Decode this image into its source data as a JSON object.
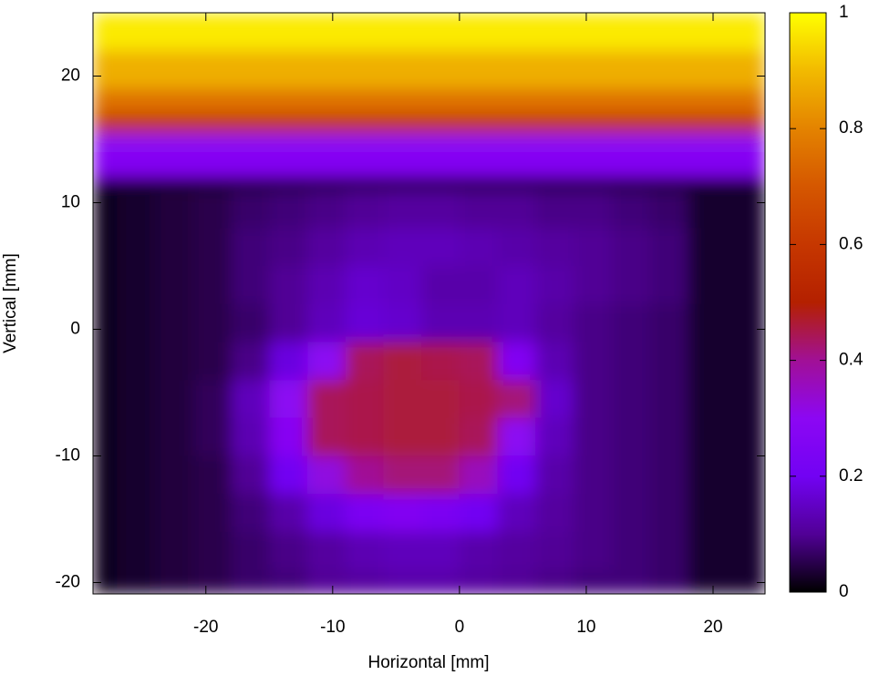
{
  "chart_data": {
    "type": "heatmap",
    "xlabel": "Horizontal [mm]",
    "ylabel": "Vertical [mm]",
    "xlim": [
      -28.9,
      24.1
    ],
    "ylim": [
      -20.9,
      25.0
    ],
    "zlim": [
      0,
      1
    ],
    "xticks": [
      -20,
      -10,
      0,
      10,
      20
    ],
    "yticks": [
      -20,
      -10,
      0,
      10,
      20
    ],
    "zticks": [
      0,
      0.2,
      0.4,
      0.6,
      0.8,
      1
    ],
    "colormap": [
      "#000000",
      "#510096",
      "#7202f3",
      "#8c07f3",
      "#a11096",
      "#b42000",
      "#c63700",
      "#d55700",
      "#e48300",
      "#f2ba00",
      "#ffff00"
    ],
    "xbins": [
      -28.9,
      -27,
      -24,
      -21,
      -18,
      -15,
      -12,
      -9,
      -6,
      -3,
      0,
      3,
      6,
      9,
      12,
      15,
      18,
      21,
      24.1
    ],
    "ybins": [
      25,
      22,
      19,
      17,
      15.5,
      14,
      12,
      11,
      8,
      5,
      2,
      -1,
      -4,
      -7,
      -10,
      -13,
      -16,
      -19,
      -20.9
    ],
    "values": [
      [
        0.97,
        0.97,
        0.97,
        0.97,
        0.97,
        0.97,
        0.97,
        0.97,
        0.97,
        0.97,
        0.97,
        0.97,
        0.97,
        0.97,
        0.97,
        0.97,
        0.97,
        0.97
      ],
      [
        0.88,
        0.88,
        0.88,
        0.88,
        0.88,
        0.88,
        0.88,
        0.88,
        0.88,
        0.88,
        0.88,
        0.88,
        0.88,
        0.88,
        0.88,
        0.88,
        0.88,
        0.88
      ],
      [
        0.76,
        0.76,
        0.76,
        0.76,
        0.76,
        0.76,
        0.76,
        0.76,
        0.76,
        0.76,
        0.76,
        0.76,
        0.76,
        0.76,
        0.76,
        0.76,
        0.76,
        0.76
      ],
      [
        0.58,
        0.58,
        0.58,
        0.58,
        0.58,
        0.58,
        0.58,
        0.58,
        0.58,
        0.58,
        0.58,
        0.58,
        0.58,
        0.58,
        0.58,
        0.58,
        0.58,
        0.58
      ],
      [
        0.3,
        0.3,
        0.3,
        0.3,
        0.3,
        0.3,
        0.3,
        0.3,
        0.3,
        0.3,
        0.3,
        0.3,
        0.3,
        0.3,
        0.3,
        0.3,
        0.3,
        0.3
      ],
      [
        0.26,
        0.26,
        0.26,
        0.26,
        0.26,
        0.26,
        0.26,
        0.26,
        0.26,
        0.26,
        0.26,
        0.26,
        0.26,
        0.26,
        0.26,
        0.26,
        0.26,
        0.26
      ],
      [
        0.03,
        0.03,
        0.03,
        0.03,
        0.03,
        0.03,
        0.03,
        0.03,
        0.03,
        0.03,
        0.03,
        0.03,
        0.03,
        0.03,
        0.03,
        0.03,
        0.03,
        0.03
      ],
      [
        0.02,
        0.03,
        0.04,
        0.05,
        0.07,
        0.08,
        0.09,
        0.1,
        0.11,
        0.11,
        0.1,
        0.1,
        0.09,
        0.09,
        0.08,
        0.07,
        0.03,
        0.03
      ],
      [
        0.02,
        0.03,
        0.04,
        0.05,
        0.08,
        0.09,
        0.11,
        0.13,
        0.14,
        0.14,
        0.13,
        0.12,
        0.11,
        0.1,
        0.09,
        0.08,
        0.03,
        0.03
      ],
      [
        0.02,
        0.03,
        0.04,
        0.05,
        0.08,
        0.1,
        0.13,
        0.16,
        0.15,
        0.12,
        0.12,
        0.14,
        0.12,
        0.1,
        0.09,
        0.08,
        0.03,
        0.03
      ],
      [
        0.02,
        0.03,
        0.04,
        0.05,
        0.07,
        0.1,
        0.14,
        0.17,
        0.16,
        0.13,
        0.13,
        0.14,
        0.11,
        0.09,
        0.08,
        0.07,
        0.03,
        0.03
      ],
      [
        0.02,
        0.03,
        0.04,
        0.05,
        0.09,
        0.18,
        0.3,
        0.44,
        0.46,
        0.45,
        0.44,
        0.26,
        0.13,
        0.09,
        0.08,
        0.07,
        0.03,
        0.03
      ],
      [
        0.02,
        0.03,
        0.04,
        0.06,
        0.14,
        0.3,
        0.44,
        0.45,
        0.46,
        0.46,
        0.45,
        0.42,
        0.16,
        0.09,
        0.08,
        0.07,
        0.03,
        0.03
      ],
      [
        0.02,
        0.03,
        0.04,
        0.06,
        0.13,
        0.28,
        0.44,
        0.45,
        0.46,
        0.46,
        0.44,
        0.3,
        0.14,
        0.09,
        0.08,
        0.07,
        0.03,
        0.03
      ],
      [
        0.02,
        0.03,
        0.04,
        0.05,
        0.1,
        0.2,
        0.32,
        0.4,
        0.42,
        0.42,
        0.36,
        0.2,
        0.12,
        0.09,
        0.08,
        0.07,
        0.03,
        0.03
      ],
      [
        0.02,
        0.03,
        0.04,
        0.05,
        0.08,
        0.12,
        0.18,
        0.24,
        0.26,
        0.24,
        0.2,
        0.14,
        0.11,
        0.09,
        0.08,
        0.07,
        0.03,
        0.03
      ],
      [
        0.02,
        0.03,
        0.04,
        0.05,
        0.07,
        0.09,
        0.11,
        0.13,
        0.14,
        0.14,
        0.12,
        0.11,
        0.1,
        0.09,
        0.08,
        0.07,
        0.03,
        0.03
      ],
      [
        0.02,
        0.03,
        0.04,
        0.05,
        0.07,
        0.08,
        0.1,
        0.11,
        0.12,
        0.12,
        0.11,
        0.1,
        0.09,
        0.08,
        0.08,
        0.07,
        0.03,
        0.03
      ]
    ]
  }
}
